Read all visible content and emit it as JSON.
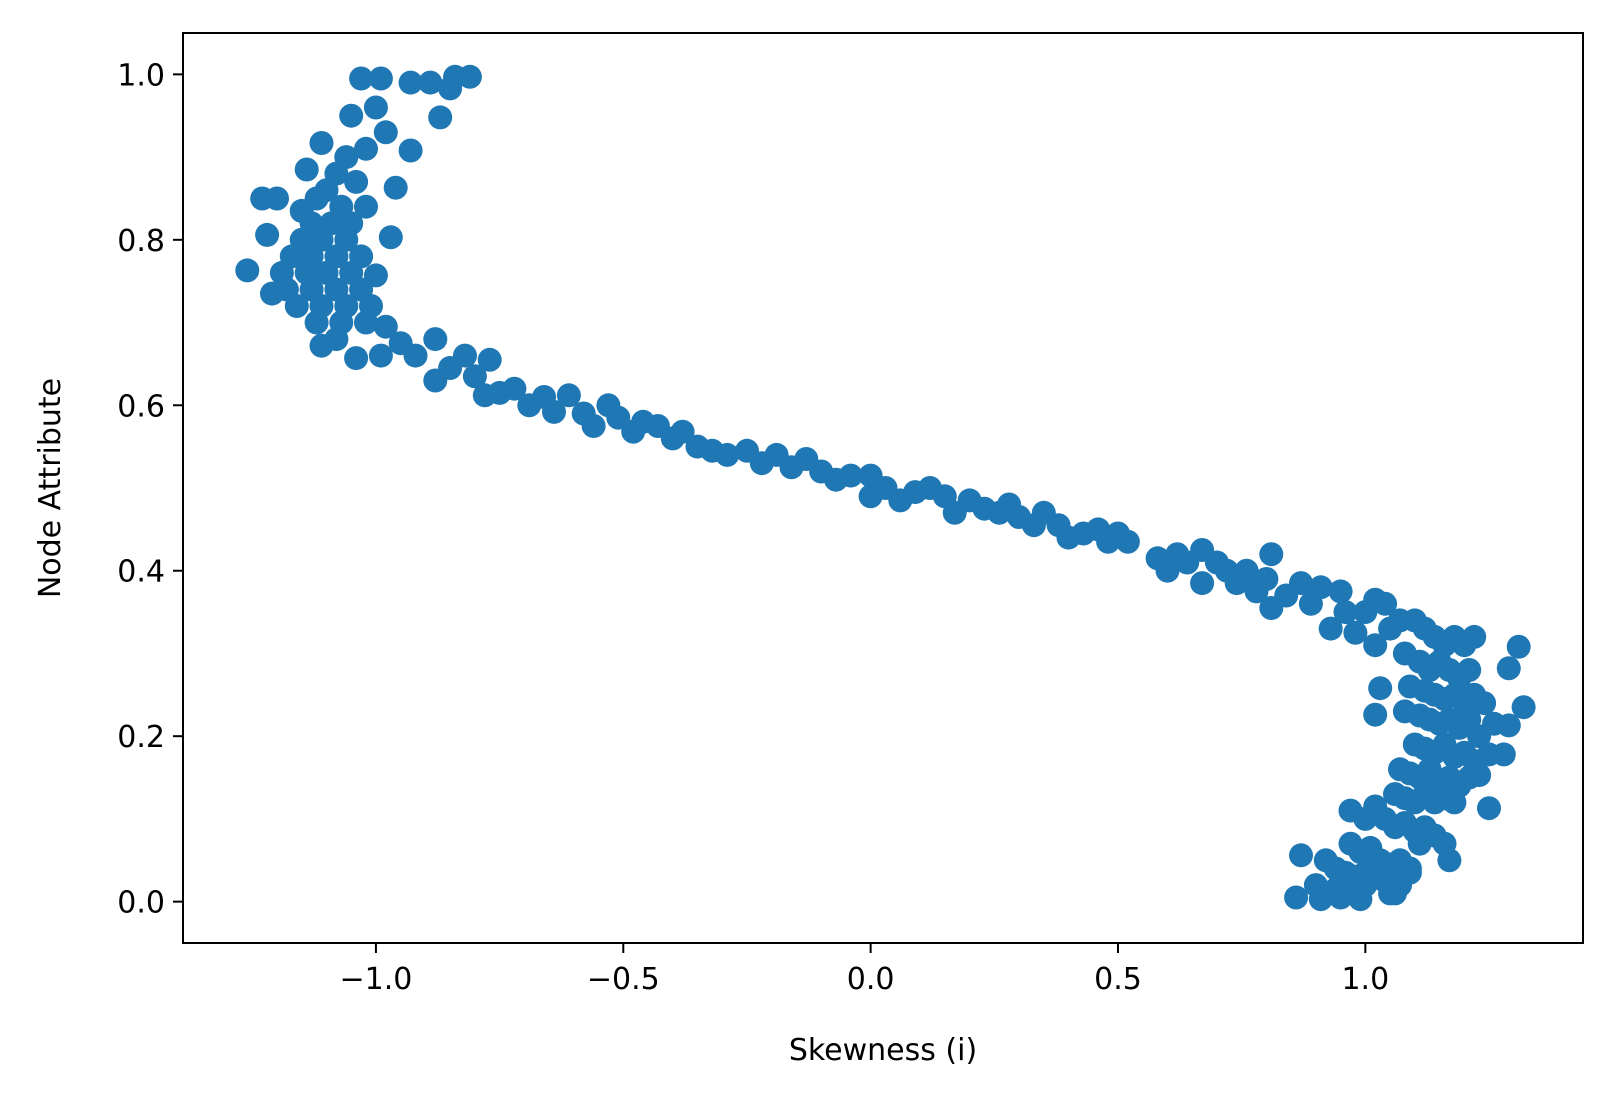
{
  "chart_data": {
    "type": "scatter",
    "title": "",
    "xlabel": "Skewness (i)",
    "ylabel": "Node Attribute",
    "xlim": [
      -1.39,
      1.44
    ],
    "ylim": [
      -0.05,
      1.05
    ],
    "xticks": [
      -1.0,
      -0.5,
      0.0,
      0.5,
      1.0
    ],
    "xtick_labels": [
      "−1.0",
      "−0.5",
      "0.0",
      "0.5",
      "1.0"
    ],
    "yticks": [
      0.0,
      0.2,
      0.4,
      0.6,
      0.8,
      1.0
    ],
    "ytick_labels": [
      "0.0",
      "0.2",
      "0.4",
      "0.6",
      "0.8",
      "1.0"
    ],
    "grid": false,
    "legend": "none",
    "marker_color": "#1f77b4",
    "series": [
      {
        "points": [
          [
            -1.26,
            0.763
          ],
          [
            -1.23,
            0.85
          ],
          [
            -1.2,
            0.85
          ],
          [
            -1.22,
            0.806
          ],
          [
            -1.21,
            0.735
          ],
          [
            -1.15,
            0.835
          ],
          [
            -1.14,
            0.885
          ],
          [
            -1.11,
            0.917
          ],
          [
            -1.11,
            0.672
          ],
          [
            -1.04,
            0.657
          ],
          [
            -0.97,
            0.803
          ],
          [
            -0.96,
            0.863
          ],
          [
            -0.93,
            0.908
          ],
          [
            -0.99,
            0.995
          ],
          [
            -1.03,
            0.995
          ],
          [
            -0.93,
            0.99
          ],
          [
            -0.89,
            0.99
          ],
          [
            -0.84,
            0.997
          ],
          [
            -0.81,
            0.997
          ],
          [
            -0.87,
            0.948
          ],
          [
            -0.85,
            0.983
          ],
          [
            -1.05,
            0.95
          ],
          [
            -1.0,
            0.96
          ],
          [
            -0.98,
            0.93
          ],
          [
            -1.02,
            0.91
          ],
          [
            -1.06,
            0.9
          ],
          [
            -1.08,
            0.88
          ],
          [
            -1.04,
            0.87
          ],
          [
            -1.1,
            0.86
          ],
          [
            -1.12,
            0.85
          ],
          [
            -1.07,
            0.84
          ],
          [
            -1.02,
            0.84
          ],
          [
            -1.13,
            0.82
          ],
          [
            -1.09,
            0.82
          ],
          [
            -1.05,
            0.82
          ],
          [
            -1.15,
            0.8
          ],
          [
            -1.11,
            0.8
          ],
          [
            -1.06,
            0.8
          ],
          [
            -1.17,
            0.78
          ],
          [
            -1.13,
            0.78
          ],
          [
            -1.08,
            0.78
          ],
          [
            -1.03,
            0.78
          ],
          [
            -1.19,
            0.76
          ],
          [
            -1.14,
            0.76
          ],
          [
            -1.1,
            0.76
          ],
          [
            -1.05,
            0.76
          ],
          [
            -1.0,
            0.757
          ],
          [
            -1.18,
            0.74
          ],
          [
            -1.13,
            0.74
          ],
          [
            -1.08,
            0.74
          ],
          [
            -1.03,
            0.74
          ],
          [
            -1.16,
            0.72
          ],
          [
            -1.11,
            0.72
          ],
          [
            -1.06,
            0.72
          ],
          [
            -1.01,
            0.72
          ],
          [
            -1.12,
            0.7
          ],
          [
            -1.07,
            0.7
          ],
          [
            -1.02,
            0.7
          ],
          [
            -0.98,
            0.695
          ],
          [
            -1.08,
            0.68
          ],
          [
            -0.99,
            0.66
          ],
          [
            -0.95,
            0.675
          ],
          [
            -0.92,
            0.66
          ],
          [
            -0.88,
            0.68
          ],
          [
            -0.88,
            0.63
          ],
          [
            -0.85,
            0.645
          ],
          [
            -0.82,
            0.66
          ],
          [
            -0.8,
            0.635
          ],
          [
            -0.77,
            0.655
          ],
          [
            -0.78,
            0.612
          ],
          [
            -0.75,
            0.615
          ],
          [
            -0.72,
            0.62
          ],
          [
            -0.69,
            0.6
          ],
          [
            -0.66,
            0.61
          ],
          [
            -0.64,
            0.592
          ],
          [
            -0.61,
            0.612
          ],
          [
            -0.58,
            0.59
          ],
          [
            -0.56,
            0.575
          ],
          [
            -0.53,
            0.6
          ],
          [
            -0.51,
            0.585
          ],
          [
            -0.48,
            0.568
          ],
          [
            -0.46,
            0.58
          ],
          [
            -0.43,
            0.575
          ],
          [
            -0.4,
            0.56
          ],
          [
            -0.38,
            0.568
          ],
          [
            -0.35,
            0.55
          ],
          [
            -0.32,
            0.545
          ],
          [
            -0.29,
            0.54
          ],
          [
            -0.25,
            0.545
          ],
          [
            -0.22,
            0.53
          ],
          [
            -0.19,
            0.54
          ],
          [
            -0.16,
            0.525
          ],
          [
            -0.13,
            0.535
          ],
          [
            -0.1,
            0.52
          ],
          [
            -0.07,
            0.51
          ],
          [
            -0.04,
            0.515
          ],
          [
            0.0,
            0.49
          ],
          [
            0.0,
            0.515
          ],
          [
            0.03,
            0.5
          ],
          [
            0.06,
            0.485
          ],
          [
            0.09,
            0.495
          ],
          [
            0.12,
            0.5
          ],
          [
            0.15,
            0.49
          ],
          [
            0.17,
            0.47
          ],
          [
            0.2,
            0.485
          ],
          [
            0.23,
            0.475
          ],
          [
            0.26,
            0.47
          ],
          [
            0.28,
            0.48
          ],
          [
            0.3,
            0.465
          ],
          [
            0.33,
            0.455
          ],
          [
            0.35,
            0.47
          ],
          [
            0.38,
            0.455
          ],
          [
            0.4,
            0.44
          ],
          [
            0.43,
            0.445
          ],
          [
            0.46,
            0.45
          ],
          [
            0.48,
            0.435
          ],
          [
            0.5,
            0.445
          ],
          [
            0.52,
            0.435
          ],
          [
            0.58,
            0.415
          ],
          [
            0.6,
            0.4
          ],
          [
            0.62,
            0.42
          ],
          [
            0.64,
            0.41
          ],
          [
            0.67,
            0.425
          ],
          [
            0.67,
            0.385
          ],
          [
            0.7,
            0.41
          ],
          [
            0.72,
            0.4
          ],
          [
            0.74,
            0.385
          ],
          [
            0.76,
            0.4
          ],
          [
            0.78,
            0.375
          ],
          [
            0.8,
            0.39
          ],
          [
            0.81,
            0.42
          ],
          [
            0.81,
            0.355
          ],
          [
            0.84,
            0.37
          ],
          [
            0.87,
            0.385
          ],
          [
            0.89,
            0.36
          ],
          [
            0.91,
            0.38
          ],
          [
            0.93,
            0.33
          ],
          [
            0.95,
            0.375
          ],
          [
            0.96,
            0.35
          ],
          [
            0.98,
            0.325
          ],
          [
            1.0,
            0.35
          ],
          [
            1.02,
            0.365
          ],
          [
            1.04,
            0.36
          ],
          [
            1.05,
            0.33
          ],
          [
            1.07,
            0.34
          ],
          [
            1.02,
            0.31
          ],
          [
            1.1,
            0.34
          ],
          [
            1.12,
            0.33
          ],
          [
            1.14,
            0.32
          ],
          [
            1.16,
            0.31
          ],
          [
            1.18,
            0.32
          ],
          [
            1.2,
            0.31
          ],
          [
            1.22,
            0.32
          ],
          [
            1.31,
            0.308
          ],
          [
            1.29,
            0.282
          ],
          [
            1.08,
            0.3
          ],
          [
            1.11,
            0.29
          ],
          [
            1.13,
            0.28
          ],
          [
            1.15,
            0.29
          ],
          [
            1.17,
            0.28
          ],
          [
            1.19,
            0.27
          ],
          [
            1.21,
            0.28
          ],
          [
            1.03,
            0.258
          ],
          [
            1.09,
            0.26
          ],
          [
            1.12,
            0.255
          ],
          [
            1.14,
            0.25
          ],
          [
            1.16,
            0.245
          ],
          [
            1.18,
            0.25
          ],
          [
            1.2,
            0.24
          ],
          [
            1.22,
            0.25
          ],
          [
            1.24,
            0.24
          ],
          [
            1.02,
            0.226
          ],
          [
            1.08,
            0.23
          ],
          [
            1.11,
            0.225
          ],
          [
            1.13,
            0.22
          ],
          [
            1.15,
            0.215
          ],
          [
            1.17,
            0.22
          ],
          [
            1.19,
            0.21
          ],
          [
            1.21,
            0.22
          ],
          [
            1.23,
            0.2
          ],
          [
            1.26,
            0.215
          ],
          [
            1.29,
            0.213
          ],
          [
            1.32,
            0.235
          ],
          [
            1.1,
            0.19
          ],
          [
            1.12,
            0.185
          ],
          [
            1.14,
            0.18
          ],
          [
            1.16,
            0.19
          ],
          [
            1.18,
            0.175
          ],
          [
            1.2,
            0.18
          ],
          [
            1.22,
            0.17
          ],
          [
            1.25,
            0.178
          ],
          [
            1.28,
            0.178
          ],
          [
            1.07,
            0.16
          ],
          [
            1.09,
            0.155
          ],
          [
            1.11,
            0.15
          ],
          [
            1.13,
            0.16
          ],
          [
            1.15,
            0.145
          ],
          [
            1.17,
            0.15
          ],
          [
            1.19,
            0.14
          ],
          [
            1.21,
            0.15
          ],
          [
            1.23,
            0.153
          ],
          [
            1.06,
            0.13
          ],
          [
            1.08,
            0.125
          ],
          [
            1.1,
            0.12
          ],
          [
            1.12,
            0.13
          ],
          [
            1.14,
            0.12
          ],
          [
            1.16,
            0.125
          ],
          [
            1.18,
            0.12
          ],
          [
            1.25,
            0.113
          ],
          [
            0.97,
            0.11
          ],
          [
            1.0,
            0.1
          ],
          [
            1.02,
            0.115
          ],
          [
            1.04,
            0.1
          ],
          [
            1.06,
            0.09
          ],
          [
            1.08,
            0.095
          ],
          [
            1.1,
            0.085
          ],
          [
            1.12,
            0.09
          ],
          [
            1.14,
            0.08
          ],
          [
            1.16,
            0.07
          ],
          [
            1.17,
            0.05
          ],
          [
            0.97,
            0.07
          ],
          [
            0.99,
            0.06
          ],
          [
            1.01,
            0.065
          ],
          [
            1.03,
            0.05
          ],
          [
            1.05,
            0.045
          ],
          [
            1.07,
            0.05
          ],
          [
            1.09,
            0.04
          ],
          [
            1.11,
            0.07
          ],
          [
            0.87,
            0.056
          ],
          [
            0.92,
            0.05
          ],
          [
            0.94,
            0.04
          ],
          [
            0.96,
            0.035
          ],
          [
            0.98,
            0.03
          ],
          [
            1.0,
            0.035
          ],
          [
            1.02,
            0.03
          ],
          [
            1.04,
            0.025
          ],
          [
            1.07,
            0.02
          ],
          [
            1.09,
            0.035
          ],
          [
            0.9,
            0.02
          ],
          [
            0.92,
            0.01
          ],
          [
            0.94,
            0.015
          ],
          [
            0.96,
            0.02
          ],
          [
            0.98,
            0.012
          ],
          [
            1.0,
            0.02
          ],
          [
            1.05,
            0.01
          ],
          [
            1.06,
            0.01
          ],
          [
            0.86,
            0.005
          ],
          [
            0.91,
            0.003
          ],
          [
            0.95,
            0.005
          ],
          [
            0.99,
            0.003
          ],
          [
            1.04,
            0.04
          ]
        ]
      }
    ]
  }
}
